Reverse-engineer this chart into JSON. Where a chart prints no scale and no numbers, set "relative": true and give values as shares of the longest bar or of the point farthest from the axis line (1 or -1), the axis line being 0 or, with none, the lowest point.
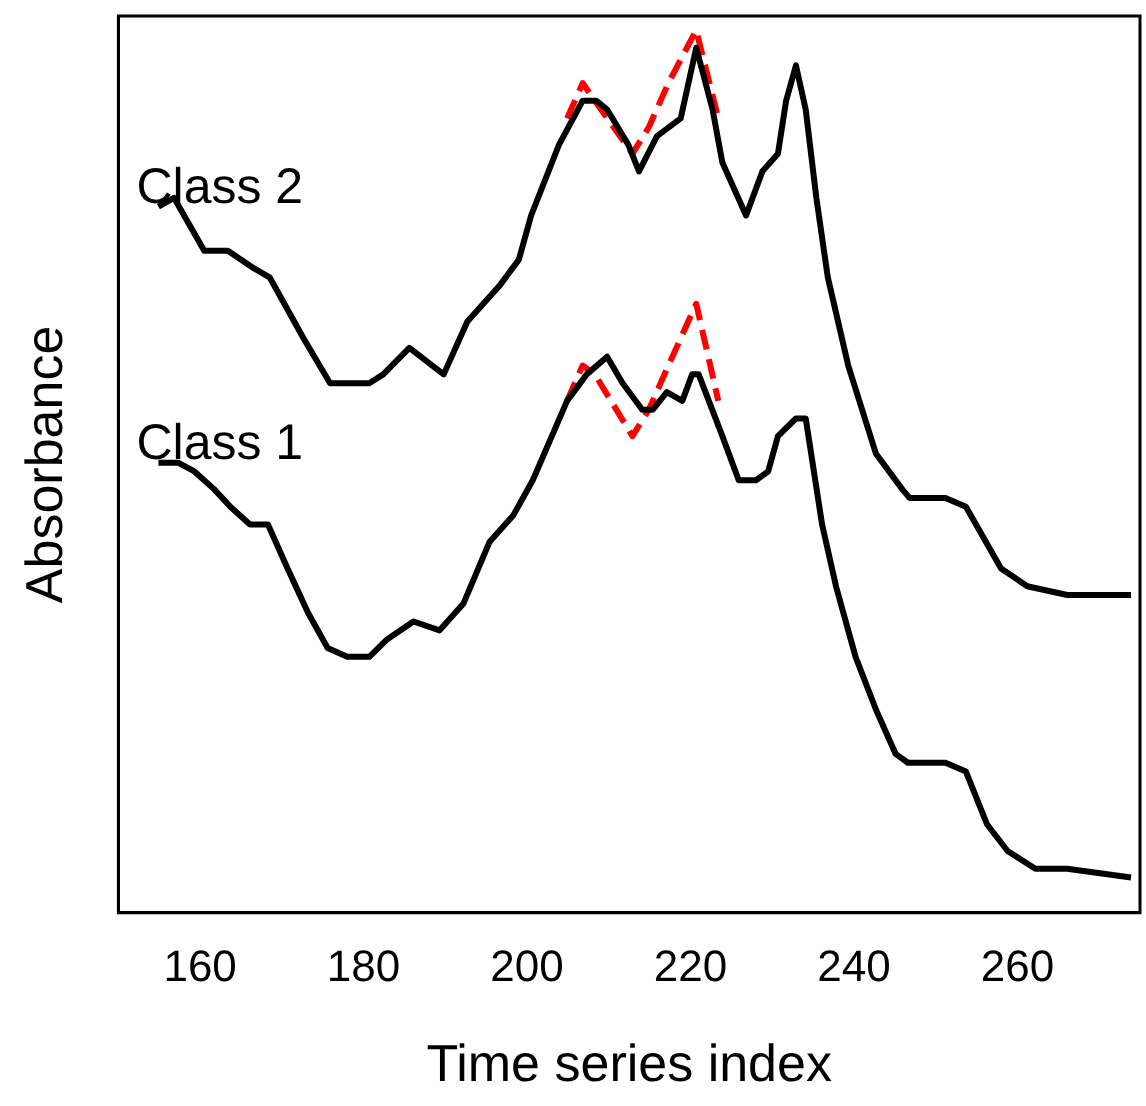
{
  "chart_data": {
    "type": "line",
    "relative": true,
    "xlabel": "Time series index",
    "ylabel": "Absorbance",
    "xlim": [
      150,
      275
    ],
    "xticks": [
      160,
      180,
      200,
      220,
      240,
      260
    ],
    "tick_labels": "x",
    "grid": false,
    "legend": false,
    "marker": "none",
    "series": [
      {
        "name": "Class 2",
        "color": "#000000",
        "line_style": "solid",
        "x": [
          154.9,
          156.8,
          160.5,
          163.4,
          166.6,
          168.5,
          172.7,
          175.9,
          180.7,
          182.4,
          185.6,
          189.8,
          192.7,
          196.6,
          199.0,
          200.5,
          203.9,
          206.8,
          208.5,
          209.8,
          212.4,
          213.7,
          215.9,
          218.8,
          220.7,
          222.7,
          223.9,
          226.8,
          228.8,
          230.7,
          231.7,
          232.9,
          234.1,
          235.4,
          236.8,
          239.3,
          242.7,
          245.9,
          246.8,
          251.2,
          253.7,
          258.0,
          261.2,
          266.1,
          273.9
        ],
        "values": [
          0.8,
          0.81,
          0.75,
          0.75,
          0.73,
          0.72,
          0.65,
          0.6,
          0.6,
          0.61,
          0.64,
          0.61,
          0.67,
          0.71,
          0.74,
          0.79,
          0.87,
          0.92,
          0.92,
          0.91,
          0.87,
          0.84,
          0.88,
          0.9,
          0.98,
          0.91,
          0.85,
          0.79,
          0.84,
          0.86,
          0.92,
          0.96,
          0.91,
          0.81,
          0.72,
          0.62,
          0.52,
          0.48,
          0.47,
          0.47,
          0.46,
          0.39,
          0.37,
          0.36,
          0.36
        ]
      },
      {
        "name": "Class 1",
        "color": "#000000",
        "line_style": "solid",
        "x": [
          154.9,
          157.3,
          159.3,
          161.7,
          163.7,
          166.1,
          168.3,
          170.7,
          173.2,
          175.6,
          178.0,
          180.7,
          182.9,
          186.1,
          189.3,
          192.2,
          195.4,
          198.3,
          200.7,
          204.9,
          207.3,
          209.8,
          211.7,
          214.1,
          215.4,
          217.1,
          219.0,
          220.2,
          221.0,
          223.9,
          225.9,
          228.0,
          229.5,
          230.7,
          232.9,
          234.1,
          236.1,
          237.8,
          240.2,
          242.7,
          245.1,
          246.6,
          251.2,
          253.7,
          256.3,
          258.8,
          262.2,
          266.1,
          273.9
        ],
        "values": [
          0.51,
          0.51,
          0.5,
          0.48,
          0.46,
          0.44,
          0.44,
          0.39,
          0.34,
          0.3,
          0.29,
          0.29,
          0.31,
          0.33,
          0.32,
          0.35,
          0.42,
          0.45,
          0.49,
          0.58,
          0.61,
          0.63,
          0.6,
          0.57,
          0.57,
          0.59,
          0.58,
          0.61,
          0.61,
          0.54,
          0.49,
          0.49,
          0.5,
          0.54,
          0.56,
          0.56,
          0.44,
          0.37,
          0.29,
          0.23,
          0.18,
          0.17,
          0.17,
          0.16,
          0.1,
          0.07,
          0.05,
          0.05,
          0.04
        ]
      },
      {
        "color": "#ff0000",
        "line_style": "dashed",
        "x": [
          204.9,
          206.8,
          208.3,
          212.9,
          214.9,
          217.3,
          220.7,
          223.4
        ],
        "values": [
          0.9,
          0.94,
          0.92,
          0.86,
          0.89,
          0.94,
          1.0,
          0.9
        ]
      },
      {
        "color": "#ff0000",
        "line_style": "dashed",
        "x": [
          204.9,
          206.8,
          208.3,
          212.9,
          214.9,
          217.3,
          220.7,
          223.4
        ],
        "values": [
          0.58,
          0.62,
          0.61,
          0.54,
          0.57,
          0.62,
          0.69,
          0.58
        ]
      }
    ]
  }
}
